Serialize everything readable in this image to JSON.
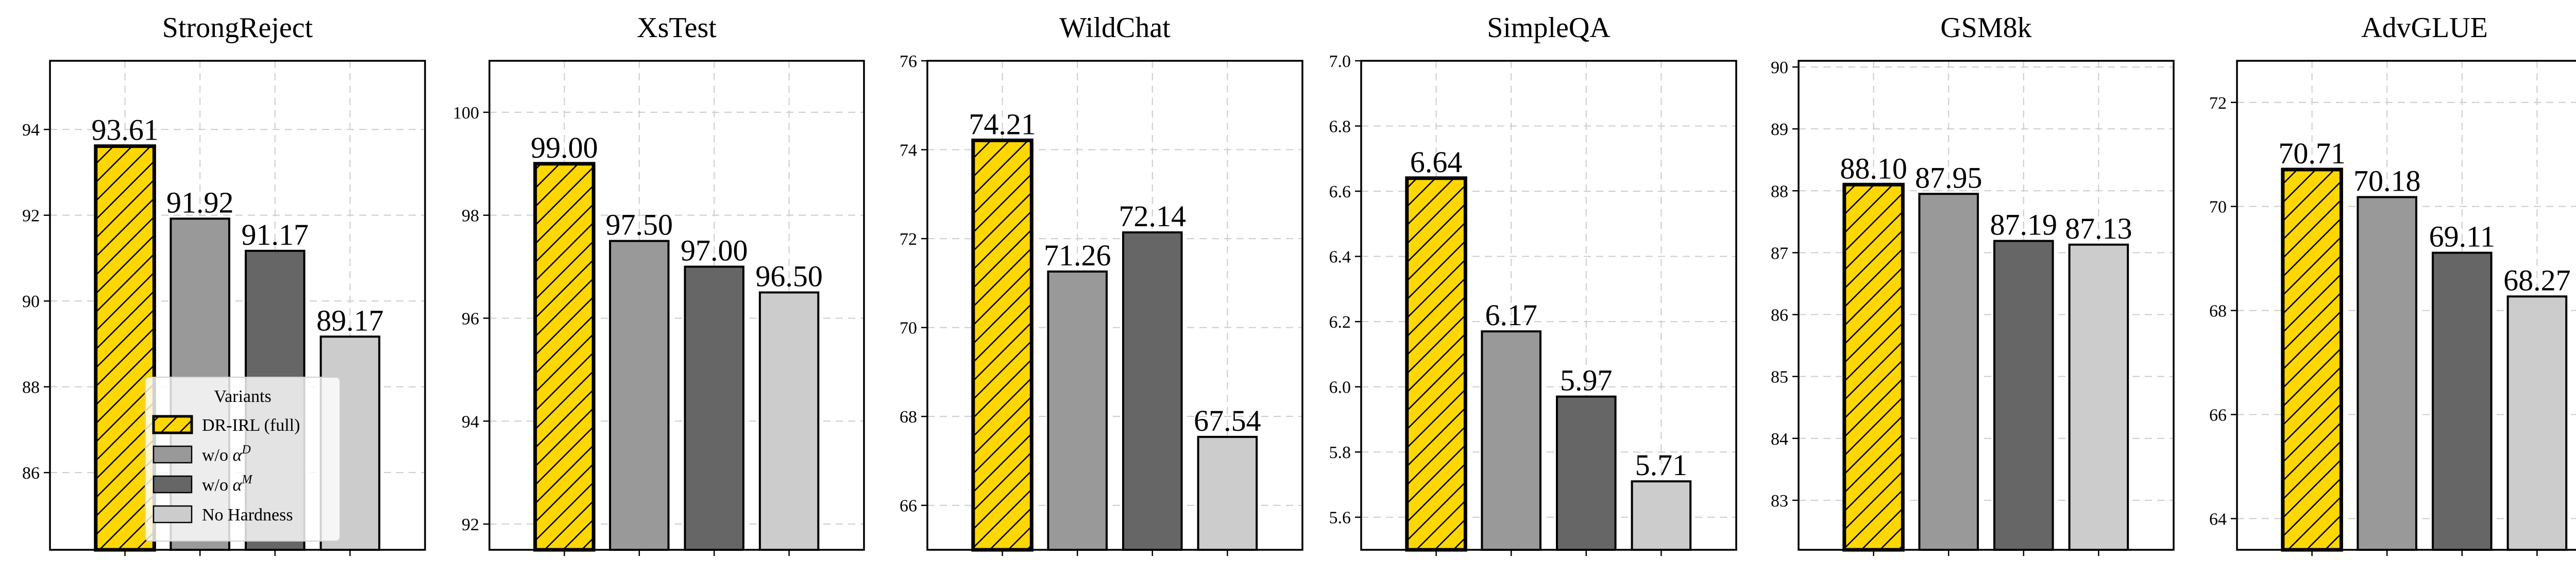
{
  "chart_data": [
    {
      "type": "bar",
      "title": "StrongReject",
      "categories": [
        "DR-IRL (full)",
        "w/o α^D",
        "w/o α^M",
        "No Hardness"
      ],
      "values": [
        93.61,
        91.92,
        91.17,
        89.17
      ],
      "value_labels": [
        "93.61",
        "91.92",
        "91.17",
        "89.17"
      ],
      "ylim": [
        84.2,
        95.6
      ],
      "yticks": [
        86,
        88,
        90,
        92,
        94
      ],
      "ytick_labels": [
        "86",
        "88",
        "90",
        "92",
        "94"
      ],
      "grid": true
    },
    {
      "type": "bar",
      "title": "XsTest",
      "categories": [
        "DR-IRL (full)",
        "w/o α^D",
        "w/o α^M",
        "No Hardness"
      ],
      "values": [
        99.0,
        97.5,
        97.0,
        96.5
      ],
      "value_labels": [
        "99.00",
        "97.50",
        "97.00",
        "96.50"
      ],
      "ylim": [
        91.5,
        101.0
      ],
      "yticks": [
        92,
        94,
        96,
        98,
        100
      ],
      "ytick_labels": [
        "92",
        "94",
        "96",
        "98",
        "100"
      ],
      "grid": true
    },
    {
      "type": "bar",
      "title": "WildChat",
      "categories": [
        "DR-IRL (full)",
        "w/o α^D",
        "w/o α^M",
        "No Hardness"
      ],
      "values": [
        74.21,
        71.26,
        72.14,
        67.54
      ],
      "value_labels": [
        "74.21",
        "71.26",
        "72.14",
        "67.54"
      ],
      "ylim": [
        65.0,
        76.0
      ],
      "yticks": [
        66,
        68,
        70,
        72,
        74,
        76
      ],
      "ytick_labels": [
        "66",
        "68",
        "70",
        "72",
        "74",
        "76"
      ],
      "grid": true
    },
    {
      "type": "bar",
      "title": "SimpleQA",
      "categories": [
        "DR-IRL (full)",
        "w/o α^D",
        "w/o α^M",
        "No Hardness"
      ],
      "values": [
        6.64,
        6.17,
        5.97,
        5.71
      ],
      "value_labels": [
        "6.64",
        "6.17",
        "5.97",
        "5.71"
      ],
      "ylim": [
        5.5,
        7.0
      ],
      "yticks": [
        5.6,
        5.8,
        6.0,
        6.2,
        6.4,
        6.6,
        6.8,
        7.0
      ],
      "ytick_labels": [
        "5.6",
        "5.8",
        "6.0",
        "6.2",
        "6.4",
        "6.6",
        "6.8",
        "7.0"
      ],
      "grid": true
    },
    {
      "type": "bar",
      "title": "GSM8k",
      "categories": [
        "DR-IRL (full)",
        "w/o α^D",
        "w/o α^M",
        "No Hardness"
      ],
      "values": [
        88.1,
        87.95,
        87.19,
        87.13
      ],
      "value_labels": [
        "88.10",
        "87.95",
        "87.19",
        "87.13"
      ],
      "ylim": [
        82.2,
        90.1
      ],
      "yticks": [
        83,
        84,
        85,
        86,
        87,
        88,
        89,
        90
      ],
      "ytick_labels": [
        "83",
        "84",
        "85",
        "86",
        "87",
        "88",
        "89",
        "90"
      ],
      "grid": true
    },
    {
      "type": "bar",
      "title": "AdvGLUE",
      "categories": [
        "DR-IRL (full)",
        "w/o α^D",
        "w/o α^M",
        "No Hardness"
      ],
      "values": [
        70.71,
        70.18,
        69.11,
        68.27
      ],
      "value_labels": [
        "70.71",
        "70.18",
        "69.11",
        "68.27"
      ],
      "ylim": [
        63.4,
        72.8
      ],
      "yticks": [
        64,
        66,
        68,
        70,
        72
      ],
      "ytick_labels": [
        "64",
        "66",
        "68",
        "70",
        "72"
      ],
      "grid": true
    }
  ],
  "legend": {
    "title": "Variants",
    "placement": "lower-left of first panel",
    "items": [
      {
        "label": "DR-IRL (full)",
        "symbol": "",
        "sup": ""
      },
      {
        "label": "w/o ",
        "symbol": "α",
        "sup": "D"
      },
      {
        "label": "w/o ",
        "symbol": "α",
        "sup": "M"
      },
      {
        "label": "No Hardness",
        "symbol": "",
        "sup": ""
      }
    ]
  },
  "colors": {
    "full": "#ffd700",
    "full_edge": "#000000",
    "no_alpha_d": "#999999",
    "no_alpha_m": "#666666",
    "no_hardness": "#cccccc",
    "grid": "#cccccc"
  }
}
